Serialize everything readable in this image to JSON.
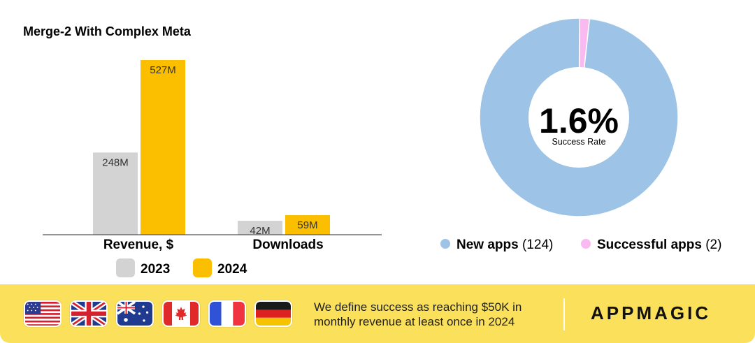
{
  "chart_data": [
    {
      "type": "bar",
      "title": "Merge-2 With Complex Meta",
      "categories": [
        "Revenue, $",
        "Downloads"
      ],
      "series": [
        {
          "name": "2023",
          "values": [
            248,
            42
          ],
          "labels": [
            "248M",
            "42M"
          ],
          "color": "#d3d3d3"
        },
        {
          "name": "2024",
          "values": [
            527,
            59
          ],
          "labels": [
            "527M",
            "59M"
          ],
          "color": "#fbbf00"
        }
      ],
      "value_unit": "M",
      "ylim": [
        0,
        560
      ],
      "grid": false,
      "legend_position": "bottom"
    },
    {
      "type": "pie",
      "variant": "donut",
      "slices": [
        {
          "label": "New apps",
          "count": "(124)",
          "value": 124,
          "color": "#9dc3e6"
        },
        {
          "label": "Successful apps",
          "count": "(2)",
          "value": 2,
          "color": "#f9b9f1"
        }
      ],
      "center_value": "1.6%",
      "center_label": "Success Rate",
      "legend_position": "bottom"
    }
  ],
  "footer": {
    "flags": [
      "us-flag-icon",
      "uk-flag-icon",
      "australia-flag-icon",
      "canada-flag-icon",
      "france-flag-icon",
      "germany-flag-icon"
    ],
    "note": "We define success as reaching $50K in monthly revenue at least once in 2024",
    "brand": "APPMAGIC",
    "background": "#fbe05b"
  }
}
